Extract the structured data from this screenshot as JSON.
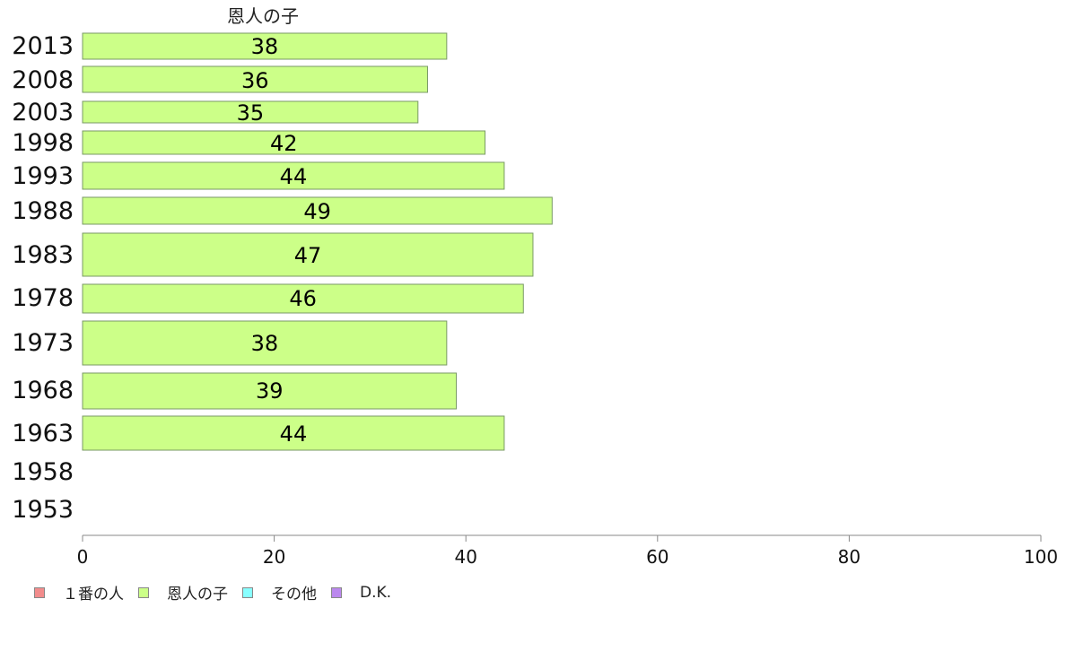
{
  "chart_data": {
    "type": "bar",
    "orientation": "horizontal",
    "stacked": true,
    "column_heading": "恩人の子",
    "categories": [
      "2013",
      "2008",
      "2003",
      "1998",
      "1993",
      "1988",
      "1983",
      "1978",
      "1973",
      "1968",
      "1963",
      "1958",
      "1953"
    ],
    "series": [
      {
        "name": "１番の人",
        "color": "#f28c8c",
        "values": [
          null,
          null,
          null,
          null,
          null,
          null,
          null,
          null,
          null,
          null,
          null,
          null,
          null
        ]
      },
      {
        "name": "恩人の子",
        "color": "#ccff88",
        "values": [
          38,
          36,
          35,
          42,
          44,
          49,
          47,
          46,
          38,
          39,
          44,
          null,
          null
        ]
      },
      {
        "name": "その他",
        "color": "#88ffff",
        "values": [
          null,
          null,
          null,
          null,
          null,
          null,
          null,
          null,
          null,
          null,
          null,
          null,
          null
        ]
      },
      {
        "name": "D.K.",
        "color": "#bb88ee",
        "values": [
          null,
          null,
          null,
          null,
          null,
          null,
          null,
          null,
          null,
          null,
          null,
          null,
          null
        ]
      }
    ],
    "data_labels": [
      "38",
      "36",
      "35",
      "42",
      "44",
      "49",
      "47",
      "46",
      "38",
      "39",
      "44",
      "",
      ""
    ],
    "xlim": [
      0,
      100
    ],
    "xticks": [
      "0",
      "20",
      "40",
      "60",
      "80",
      "100"
    ],
    "xlabel": "",
    "ylabel": "",
    "grid": false,
    "legend_position": "bottom-left"
  }
}
